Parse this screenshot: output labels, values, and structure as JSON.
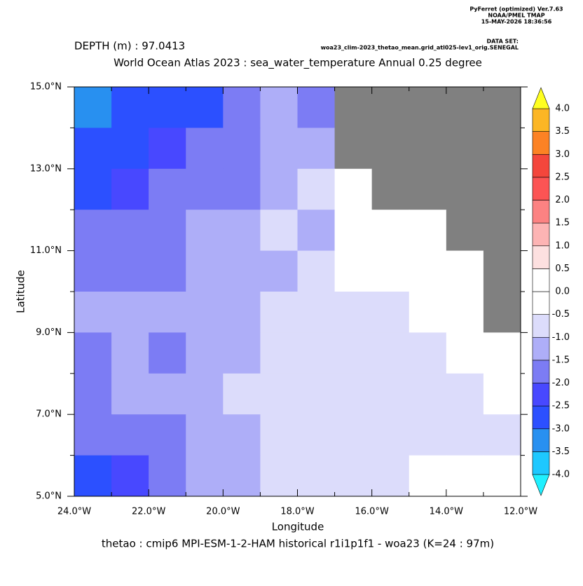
{
  "chart_data": {
    "type": "map",
    "header_lines": [
      "PyFerret (optimized) Ver.7.63",
      "NOAA/PMEL TMAP",
      "15-MAY-2026 18:36:56"
    ],
    "dataset_label": "DATA SET:",
    "dataset": "woa23_clim-2023_thetao_mean.grid_atl025-lev1_orig.SENEGAL",
    "depth": "DEPTH (m) : 97.0413",
    "title": "World Ocean Atlas 2023 : sea_water_temperature Annual  0.25 degree",
    "xlabel": "Longitude",
    "ylabel": "Latitude",
    "footer": "thetao : cmip6 MPI-ESM-1-2-HAM historical r1i1p1f1 - woa23  (K=24 : 97m)",
    "xlim": [
      -24,
      -12
    ],
    "ylim": [
      5,
      15
    ],
    "xticks": [
      {
        "value": -24,
        "label": "24.0°W"
      },
      {
        "value": -22,
        "label": "22.0°W"
      },
      {
        "value": -20,
        "label": "20.0°W"
      },
      {
        "value": -18,
        "label": "18.0°W"
      },
      {
        "value": -16,
        "label": "16.0°W"
      },
      {
        "value": -14,
        "label": "14.0°W"
      },
      {
        "value": -12,
        "label": "12.0°W"
      }
    ],
    "xminorticks": [
      -23,
      -21,
      -19,
      -17,
      -15,
      -13
    ],
    "yticks": [
      {
        "value": 5,
        "label": "5.0°N"
      },
      {
        "value": 7,
        "label": "7.0°N"
      },
      {
        "value": 9,
        "label": "9.0°N"
      },
      {
        "value": 11,
        "label": "11.0°N"
      },
      {
        "value": 13,
        "label": "13.0°N"
      },
      {
        "value": 15,
        "label": "15.0°N"
      }
    ],
    "yminorticks": [
      6,
      8,
      10,
      12,
      14
    ],
    "xbins": [
      -24,
      -23,
      -22,
      -21,
      -20,
      -19,
      -18,
      -17,
      -16,
      -15,
      -14,
      -13,
      -12
    ],
    "ybins": [
      15,
      14,
      13,
      12,
      11,
      10,
      9,
      8,
      7,
      6,
      5
    ],
    "z": [
      [
        -3.2,
        -3.0,
        -2.8,
        -2.7,
        -1.8,
        -1.4,
        -1.6,
        null,
        null,
        null,
        null,
        null
      ],
      [
        -2.8,
        -2.7,
        -2.5,
        -2.0,
        -1.7,
        -1.3,
        -1.2,
        null,
        null,
        null,
        null,
        null
      ],
      [
        -2.6,
        -2.4,
        -1.7,
        -1.7,
        -1.6,
        -1.1,
        -0.8,
        -0.3,
        null,
        null,
        null,
        null
      ],
      [
        -1.8,
        -1.8,
        -1.7,
        -1.4,
        -1.2,
        -0.8,
        -1.2,
        -0.3,
        -0.2,
        -0.2,
        null,
        null
      ],
      [
        -1.8,
        -1.7,
        -1.6,
        -1.5,
        -1.3,
        -1.1,
        -0.8,
        -0.4,
        -0.2,
        -0.2,
        -0.2,
        null
      ],
      [
        -1.3,
        -1.2,
        -1.2,
        -1.2,
        -1.3,
        -0.8,
        -0.7,
        -0.7,
        -0.6,
        -0.3,
        -0.2,
        null
      ],
      [
        -1.6,
        -1.5,
        -1.6,
        -1.3,
        -1.2,
        -0.8,
        -0.7,
        -0.7,
        -0.6,
        -0.6,
        -0.3,
        -0.2
      ],
      [
        -1.6,
        -1.4,
        -1.3,
        -1.2,
        -0.9,
        -0.7,
        -0.7,
        -0.6,
        -0.6,
        -0.6,
        -0.6,
        -0.3
      ],
      [
        -1.7,
        -1.6,
        -1.6,
        -1.2,
        -1.2,
        -0.8,
        -0.6,
        -0.6,
        -0.6,
        -0.6,
        -0.6,
        -0.6
      ],
      [
        -2.6,
        -2.5,
        -1.8,
        -1.5,
        -1.3,
        -0.8,
        -0.6,
        -0.6,
        -0.6,
        -0.3,
        -0.5,
        -0.3
      ]
    ],
    "mask_color": "#808080",
    "levels": [
      {
        "value": -4,
        "label": "-4.0"
      },
      {
        "value": -3.5,
        "label": "-3.5"
      },
      {
        "value": -3,
        "label": "-3.0"
      },
      {
        "value": -2.5,
        "label": "-2.5"
      },
      {
        "value": -2,
        "label": "-2.0"
      },
      {
        "value": -1.5,
        "label": "-1.5"
      },
      {
        "value": -1,
        "label": "-1.0"
      },
      {
        "value": -0.5,
        "label": "-0.5"
      },
      {
        "value": 0,
        "label": "0.0"
      },
      {
        "value": 0.5,
        "label": "0.5"
      },
      {
        "value": 1,
        "label": "1.0"
      },
      {
        "value": 1.5,
        "label": "1.5"
      },
      {
        "value": 2,
        "label": "2.0"
      },
      {
        "value": 2.5,
        "label": "2.5"
      },
      {
        "value": 3,
        "label": "3.0"
      },
      {
        "value": 3.5,
        "label": "3.5"
      },
      {
        "value": 4,
        "label": "4.0"
      }
    ],
    "colors": [
      "#1ec8ff",
      "#2890f0",
      "#2c50ff",
      "#4848ff",
      "#7c7cf4",
      "#aeaef8",
      "#dcdcfb",
      "#ffffff",
      "#ffffff",
      "#fde0e0",
      "#fdb4b4",
      "#fc8282",
      "#fc5454",
      "#f4463c",
      "#fc8224",
      "#fcb624"
    ],
    "under_color": "#20f0ff",
    "over_color": "#ffff20"
  }
}
